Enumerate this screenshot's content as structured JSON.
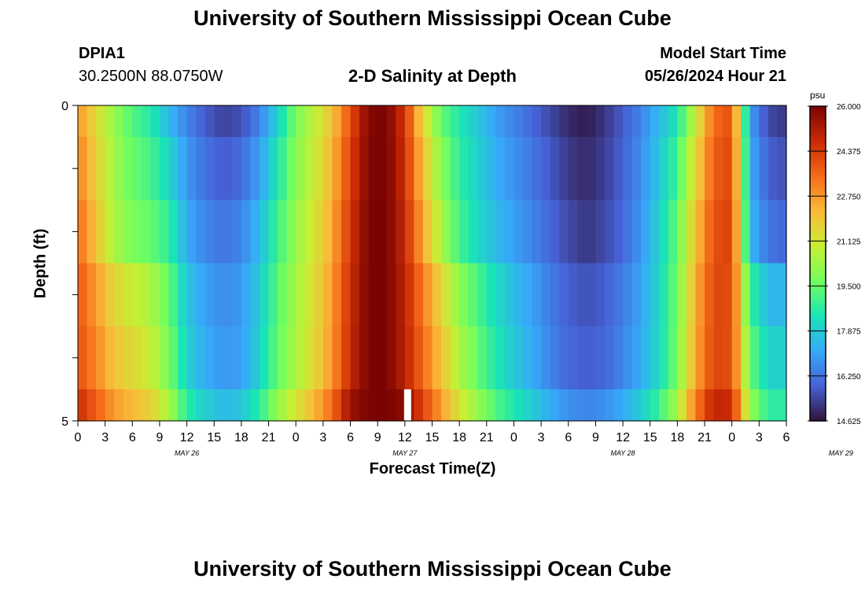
{
  "header": {
    "title": "University of Southern Mississippi Ocean Cube",
    "station_id": "DPIA1",
    "station_coords": "30.2500N  88.0750W",
    "chart_title": "2-D Salinity at Depth",
    "model_start_label": "Model Start Time",
    "model_start_value": "05/26/2024 Hour 21"
  },
  "footer": {
    "title": "University of Southern Mississippi Ocean Cube"
  },
  "chart_data": {
    "type": "heatmap",
    "title": "2-D Salinity at Depth",
    "xlabel": "Forecast Time(Z)",
    "ylabel": "Depth (ft)",
    "x_ticks_hours": [
      "0",
      "3",
      "6",
      "9",
      "12",
      "15",
      "18",
      "21",
      "0",
      "3",
      "6",
      "9",
      "12",
      "15",
      "18",
      "21",
      "0",
      "3",
      "6",
      "9",
      "12",
      "15",
      "18",
      "21",
      "0",
      "3",
      "6"
    ],
    "day_labels": [
      "MAY 26",
      "MAY 27",
      "MAY 28",
      "MAY 29"
    ],
    "x_range_hours": [
      0,
      78
    ],
    "y_tick_labels": [
      "0",
      "5"
    ],
    "ylim": [
      0,
      5
    ],
    "depth_layers_ft": [
      0,
      0.5,
      1.5,
      2.5,
      3.5,
      4.5,
      5
    ],
    "colorbar": {
      "unit": "psu",
      "min": 14.625,
      "max": 26.0,
      "tick_labels": [
        "26.000",
        "24.375",
        "22.750",
        "21.125",
        "19.500",
        "17.875",
        "16.250",
        "14.625"
      ],
      "colors": [
        "#30123b",
        "#4662d7",
        "#36aaf9",
        "#1ae4b6",
        "#72fe5e",
        "#c7ef34",
        "#faba39",
        "#f66b19",
        "#ca2a04",
        "#7a0403"
      ]
    },
    "missing_time_hours": [
      36
    ],
    "time_hours": [
      0,
      2,
      4,
      6,
      8,
      10,
      12,
      14,
      16,
      18,
      20,
      22,
      24,
      26,
      28,
      30,
      32,
      34,
      36,
      38,
      40,
      42,
      44,
      46,
      48,
      50,
      52,
      54,
      56,
      58,
      60,
      62,
      64,
      66,
      68,
      70,
      72,
      74,
      76,
      78
    ],
    "salinity_by_layer": [
      [
        22.8,
        21.5,
        20.2,
        19.2,
        18.6,
        17.5,
        16.5,
        15.8,
        15.4,
        15.6,
        16.5,
        18.0,
        19.8,
        20.8,
        22.0,
        24.0,
        25.9,
        26.0,
        24.5,
        21.5,
        19.5,
        18.5,
        17.8,
        17.0,
        16.5,
        16.0,
        15.5,
        15.0,
        14.8,
        15.2,
        15.8,
        16.5,
        17.5,
        18.5,
        21.0,
        23.5,
        24.0,
        17.0,
        15.5,
        15.2
      ],
      [
        23.5,
        22.0,
        20.5,
        19.8,
        19.5,
        18.8,
        17.2,
        16.5,
        16.2,
        16.5,
        17.5,
        19.0,
        20.2,
        21.2,
        22.5,
        24.5,
        26.0,
        26.0,
        24.8,
        22.5,
        20.5,
        19.0,
        18.2,
        17.5,
        17.0,
        16.5,
        16.0,
        15.5,
        15.2,
        15.5,
        16.0,
        16.8,
        18.0,
        19.5,
        22.0,
        24.0,
        24.3,
        17.5,
        16.2,
        16.0
      ],
      [
        24.0,
        23.0,
        22.0,
        21.5,
        21.0,
        19.8,
        18.0,
        17.2,
        16.8,
        17.0,
        18.0,
        19.5,
        20.5,
        21.5,
        22.8,
        24.8,
        26.0,
        26.0,
        25.0,
        23.5,
        22.0,
        20.5,
        19.5,
        18.5,
        17.8,
        17.2,
        16.5,
        16.0,
        15.8,
        16.0,
        16.5,
        17.2,
        18.2,
        19.8,
        22.5,
        24.2,
        24.0,
        19.5,
        18.0,
        18.0
      ]
    ]
  }
}
